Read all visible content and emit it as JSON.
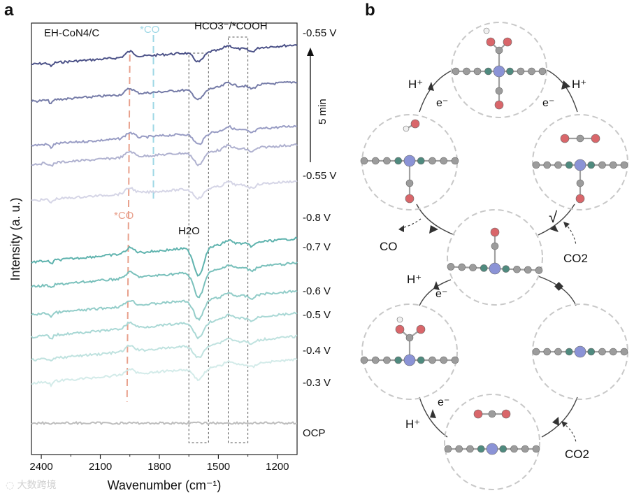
{
  "panel_a": {
    "label": "a",
    "sample_label": "EH-CoN4/C",
    "annotations": {
      "co_top": "*CO",
      "hco3": "HCO3⁻/*COOH",
      "co_mid": "*CO",
      "h2o": "H2O",
      "time_label": "5 min"
    },
    "colors": {
      "co_marker": "#e8a08c",
      "co_top_marker": "#9fd8e6",
      "potential_series": "#7fc4c1",
      "time_series": "#5a5f95",
      "ocp": "#bdbdbd"
    }
  },
  "chart_data": {
    "type": "line",
    "title": "",
    "xlabel": "Wavenumber (cm⁻¹)",
    "ylabel": "Intensity (a. u.)",
    "xlim": [
      2450,
      1100
    ],
    "x_ticks": [
      "2400",
      "2100",
      "1800",
      "1500",
      "1200"
    ],
    "bands": [
      {
        "name": "H2O",
        "range": [
          1650,
          1550
        ]
      },
      {
        "name": "HCO3-/*COOH",
        "range": [
          1450,
          1350
        ]
      }
    ],
    "markers": [
      {
        "name": "*CO (potential series)",
        "x": 1950
      },
      {
        "name": "*CO (time series)",
        "x": 1830
      }
    ],
    "series": [
      {
        "name": "-0.55 V (5 min)",
        "right_label": "-0.55 V",
        "group": "time",
        "shade": 0,
        "peak_x": 1950,
        "dip_x": 1600,
        "dip_depth": 14
      },
      {
        "name": "-0.55 V t4",
        "right_label": "",
        "group": "time",
        "shade": 1,
        "peak_x": 1950,
        "dip_x": 1600,
        "dip_depth": 15
      },
      {
        "name": "-0.55 V t3",
        "right_label": "",
        "group": "time",
        "shade": 2,
        "peak_x": 1950,
        "dip_x": 1600,
        "dip_depth": 16
      },
      {
        "name": "-0.55 V t2",
        "right_label": "",
        "group": "time",
        "shade": 3,
        "peak_x": 1950,
        "dip_x": 1600,
        "dip_depth": 18
      },
      {
        "name": "-0.55 V (0 min)",
        "right_label": "-0.55 V",
        "group": "time",
        "shade": 4,
        "peak_x": 1950,
        "dip_x": 1600,
        "dip_depth": 14
      },
      {
        "name": "-0.8 V",
        "right_label": "-0.8 V",
        "group": "potential",
        "shade": 0,
        "peak_x": 1950,
        "dip_x": 1600,
        "dip_depth": 40
      },
      {
        "name": "-0.7 V",
        "right_label": "-0.7 V",
        "group": "potential",
        "shade": 1,
        "peak_x": 1950,
        "dip_x": 1600,
        "dip_depth": 36
      },
      {
        "name": "-0.6 V",
        "right_label": "-0.6 V",
        "group": "potential",
        "shade": 2,
        "peak_x": 1950,
        "dip_x": 1600,
        "dip_depth": 28
      },
      {
        "name": "-0.5 V",
        "right_label": "-0.5 V",
        "group": "potential",
        "shade": 3,
        "peak_x": 1950,
        "dip_x": 1600,
        "dip_depth": 22
      },
      {
        "name": "-0.4 V",
        "right_label": "-0.4 V",
        "group": "potential",
        "shade": 4,
        "peak_x": 1950,
        "dip_x": 1600,
        "dip_depth": 18
      },
      {
        "name": "-0.3 V",
        "right_label": "-0.3 V",
        "group": "potential",
        "shade": 5,
        "peak_x": 1950,
        "dip_x": 1600,
        "dip_depth": 16
      },
      {
        "name": "OCP",
        "right_label": "OCP",
        "group": "ocp",
        "shade": 0,
        "peak_x": 1950,
        "dip_x": 1600,
        "dip_depth": 0
      }
    ]
  },
  "panel_b": {
    "label": "b",
    "step_labels": {
      "h_plus": "H⁺",
      "e_minus": "e⁻",
      "co_product": "CO",
      "co2": "CO2",
      "sqrt_symbol": "√"
    },
    "states": [
      {
        "name": "*COOH-top"
      },
      {
        "name": "*CO-OH-left"
      },
      {
        "name": "*CO-CO2-right"
      },
      {
        "name": "*CO-center"
      },
      {
        "name": "*COOH-left"
      },
      {
        "name": "Co-site-right"
      },
      {
        "name": "CO2-bottom"
      }
    ],
    "atom_colors": {
      "carbon": "#9c9c9c",
      "nitrogen": "#4f8a7e",
      "cobalt": "#8b93d6",
      "oxygen": "#d9666a",
      "hydrogen": "#f0f0f0"
    }
  }
}
